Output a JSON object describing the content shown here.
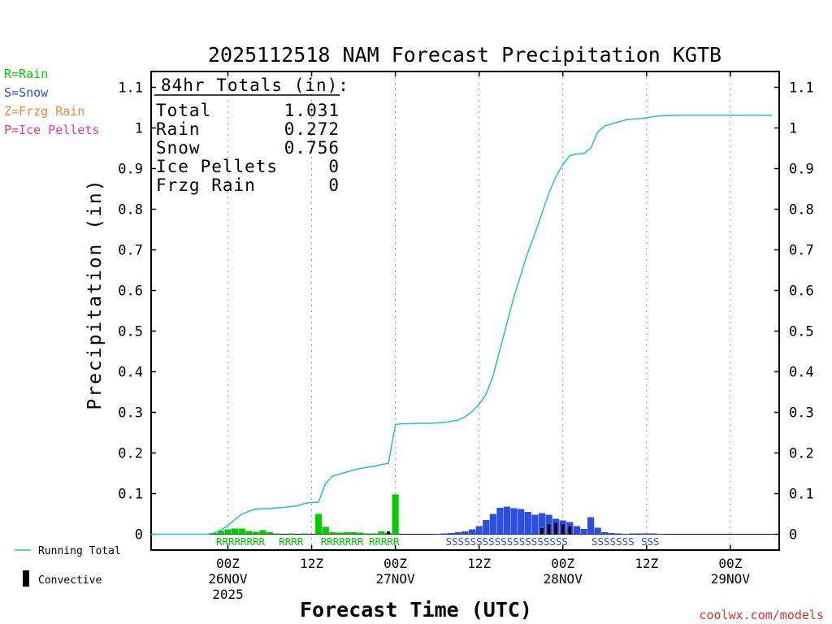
{
  "chart_data": {
    "type": "bar",
    "title": "2025112518 NAM Forecast Precipitation KGTB",
    "xlabel": "Forecast Time (UTC)",
    "ylabel": "Precipitation (in)",
    "ylim": [
      0,
      1.1
    ],
    "yticks": [
      0,
      0.1,
      0.2,
      0.3,
      0.4,
      0.5,
      0.6,
      0.7,
      0.8,
      0.9,
      1,
      1.1
    ],
    "ytick_labels": [
      "0",
      "0.1",
      "0.2",
      "0.3",
      "0.4",
      "0.5",
      "0.6",
      "0.7",
      "0.8",
      "0.9",
      "1",
      "1.1"
    ],
    "xlim_hours": [
      -5,
      85
    ],
    "xticks": [
      {
        "hour": 6,
        "l1": "00Z",
        "l2": "26NOV",
        "l3": "2025"
      },
      {
        "hour": 18,
        "l1": "12Z",
        "l2": "",
        "l3": ""
      },
      {
        "hour": 30,
        "l1": "00Z",
        "l2": "27NOV",
        "l3": ""
      },
      {
        "hour": 42,
        "l1": "12Z",
        "l2": "",
        "l3": ""
      },
      {
        "hour": 54,
        "l1": "00Z",
        "l2": "28NOV",
        "l3": ""
      },
      {
        "hour": 66,
        "l1": "12Z",
        "l2": "",
        "l3": ""
      },
      {
        "hour": 78,
        "l1": "00Z",
        "l2": "29NOV",
        "l3": ""
      }
    ],
    "legend_types": [
      {
        "text": "R=Rain",
        "color": "#00cc00"
      },
      {
        "text": "S=Snow",
        "color": "#2d4fe0"
      },
      {
        "text": "Z=Frzg Rain",
        "color": "#f0883a"
      },
      {
        "text": "P=Ice Pellets",
        "color": "#e83a8a"
      }
    ],
    "legend_series": [
      {
        "text": "Running Total",
        "color": "#1cc7c7",
        "kind": "line"
      },
      {
        "text": "Convective",
        "color": "#000000",
        "kind": "bar"
      }
    ],
    "totals": {
      "header": "84hr Totals (in):",
      "rows": [
        {
          "label": "Total",
          "value": "1.031"
        },
        {
          "label": "Rain",
          "value": "0.272"
        },
        {
          "label": "Snow",
          "value": "0.756"
        },
        {
          "label": "Ice Pellets",
          "value": "0"
        },
        {
          "label": "Frzg Rain",
          "value": "0"
        }
      ]
    },
    "series": [
      {
        "name": "Rain",
        "color": "#00cc00",
        "hours": [
          4,
          5,
          6,
          7,
          8,
          9,
          10,
          11,
          12,
          13,
          15,
          17,
          19,
          20,
          21,
          22,
          23,
          24,
          25,
          26,
          27,
          28,
          29,
          30
        ],
        "values": [
          0.003,
          0.008,
          0.012,
          0.014,
          0.014,
          0.008,
          0.006,
          0.01,
          0.005,
          0.002,
          0.002,
          0.002,
          0.05,
          0.018,
          0.005,
          0.004,
          0.005,
          0.005,
          0.004,
          0.002,
          0.002,
          0.007,
          0.003,
          0.098
        ]
      },
      {
        "name": "Snow",
        "color": "#2d4fe0",
        "hours": [
          36,
          37,
          38,
          39,
          40,
          41,
          42,
          43,
          44,
          45,
          46,
          47,
          48,
          49,
          50,
          51,
          52,
          53,
          54,
          55,
          56,
          57,
          58,
          59,
          60,
          61,
          62,
          63,
          64,
          65,
          66,
          67,
          68
        ],
        "values": [
          0.001,
          0.002,
          0.003,
          0.005,
          0.007,
          0.012,
          0.02,
          0.035,
          0.05,
          0.065,
          0.068,
          0.064,
          0.062,
          0.055,
          0.048,
          0.052,
          0.048,
          0.038,
          0.034,
          0.03,
          0.02,
          0.013,
          0.042,
          0.016,
          0.005,
          0.003,
          0.002,
          0.001,
          0.002,
          0.002,
          0.002,
          0.002,
          0.001
        ]
      },
      {
        "name": "Convective",
        "color": "#000000",
        "hours": [
          29,
          51,
          52,
          53,
          54,
          55
        ],
        "values": [
          0.007,
          0.015,
          0.025,
          0.028,
          0.024,
          0.02
        ]
      }
    ],
    "running_total": {
      "name": "Running Total",
      "color": "#1cc7c7",
      "hours": [
        -5,
        -1,
        0,
        1,
        2,
        3,
        4,
        5,
        6,
        7,
        8,
        9,
        10,
        11,
        12,
        13,
        14,
        15,
        16,
        17,
        18,
        19,
        20,
        21,
        22,
        23,
        24,
        25,
        26,
        27,
        28,
        29,
        30,
        31,
        32,
        33,
        34,
        35,
        36,
        37,
        38,
        39,
        40,
        41,
        42,
        43,
        44,
        45,
        46,
        47,
        48,
        49,
        50,
        51,
        52,
        53,
        54,
        55,
        56,
        57,
        58,
        59,
        60,
        61,
        62,
        63,
        64,
        65,
        66,
        67,
        68,
        70,
        72,
        76,
        80,
        84
      ],
      "values": [
        0,
        0,
        0,
        0,
        0,
        0,
        0.003,
        0.01,
        0.022,
        0.036,
        0.05,
        0.056,
        0.062,
        0.063,
        0.063,
        0.065,
        0.066,
        0.068,
        0.07,
        0.076,
        0.078,
        0.079,
        0.125,
        0.143,
        0.148,
        0.153,
        0.158,
        0.162,
        0.165,
        0.167,
        0.172,
        0.174,
        0.27,
        0.272,
        0.272,
        0.273,
        0.273,
        0.273,
        0.274,
        0.275,
        0.278,
        0.281,
        0.289,
        0.302,
        0.32,
        0.345,
        0.39,
        0.455,
        0.52,
        0.585,
        0.64,
        0.695,
        0.74,
        0.79,
        0.84,
        0.88,
        0.91,
        0.932,
        0.936,
        0.937,
        0.95,
        0.99,
        1.005,
        1.01,
        1.015,
        1.02,
        1.022,
        1.023,
        1.025,
        1.028,
        1.03,
        1.031,
        1.031,
        1.031,
        1.031,
        1.031
      ]
    },
    "ptype_labels": [
      {
        "text": "RRRRRRRR",
        "color": "#00cc00",
        "start_hour": 4.3
      },
      {
        "text": "RRRR",
        "color": "#00cc00",
        "start_hour": 13.3
      },
      {
        "text": "RRRRRRR",
        "color": "#00cc00",
        "start_hour": 19.3
      },
      {
        "text": "RRRRR",
        "color": "#00cc00",
        "start_hour": 26.2
      },
      {
        "text": "SSSSSSSSSSSSSSSSSSSS",
        "color": "#2d4fe0",
        "start_hour": 37.2
      },
      {
        "text": "SSSSSSS",
        "color": "#2d4fe0",
        "start_hour": 58.1
      },
      {
        "text": "SSS",
        "color": "#2d4fe0",
        "start_hour": 65.2
      }
    ]
  },
  "source": "coolwx.com/models"
}
